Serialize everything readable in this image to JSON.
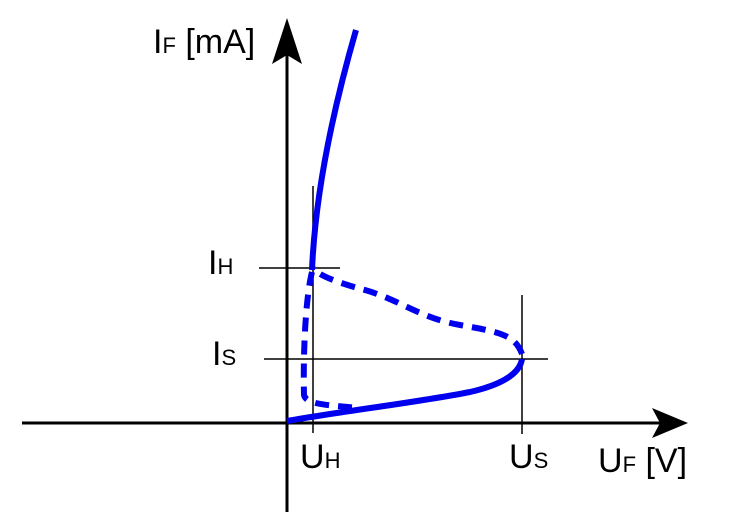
{
  "axes": {
    "y_label": {
      "main": "I",
      "sub": "F",
      "unit": " [mA]"
    },
    "x_label": {
      "main": "U",
      "sub": "F",
      "unit": " [V]"
    }
  },
  "markers": {
    "ih": {
      "main": "I",
      "sub": "H"
    },
    "is": {
      "main": "I",
      "sub": "S"
    },
    "uh": {
      "main": "U",
      "sub": "H"
    },
    "us": {
      "main": "U",
      "sub": "S"
    }
  },
  "colors": {
    "curve": "#0000ee",
    "axes": "#000000"
  }
}
